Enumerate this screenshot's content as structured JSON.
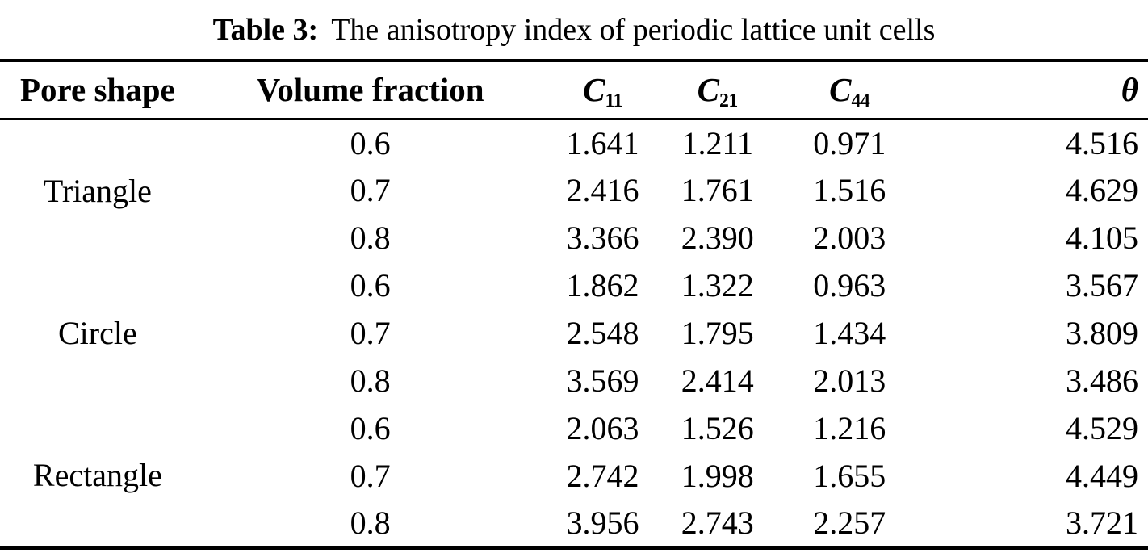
{
  "caption": {
    "label": "Table 3:",
    "text": "The anisotropy index of periodic lattice unit cells"
  },
  "columns": {
    "pore_shape": "Pore shape",
    "volume_fraction": "Volume fraction",
    "c11_base": "C",
    "c11_sub": "11",
    "c21_base": "C",
    "c21_sub": "21",
    "c44_base": "C",
    "c44_sub": "44",
    "theta": "θ"
  },
  "groups": [
    {
      "pore_shape": "Triangle",
      "rows": [
        {
          "vf": "0.6",
          "c11": "1.641",
          "c21": "1.211",
          "c44": "0.971",
          "theta": "4.516"
        },
        {
          "vf": "0.7",
          "c11": "2.416",
          "c21": "1.761",
          "c44": "1.516",
          "theta": "4.629"
        },
        {
          "vf": "0.8",
          "c11": "3.366",
          "c21": "2.390",
          "c44": "2.003",
          "theta": "4.105"
        }
      ]
    },
    {
      "pore_shape": "Circle",
      "rows": [
        {
          "vf": "0.6",
          "c11": "1.862",
          "c21": "1.322",
          "c44": "0.963",
          "theta": "3.567"
        },
        {
          "vf": "0.7",
          "c11": "2.548",
          "c21": "1.795",
          "c44": "1.434",
          "theta": "3.809"
        },
        {
          "vf": "0.8",
          "c11": "3.569",
          "c21": "2.414",
          "c44": "2.013",
          "theta": "3.486"
        }
      ]
    },
    {
      "pore_shape": "Rectangle",
      "rows": [
        {
          "vf": "0.6",
          "c11": "2.063",
          "c21": "1.526",
          "c44": "1.216",
          "theta": "4.529"
        },
        {
          "vf": "0.7",
          "c11": "2.742",
          "c21": "1.998",
          "c44": "1.655",
          "theta": "4.449"
        },
        {
          "vf": "0.8",
          "c11": "3.956",
          "c21": "2.743",
          "c44": "2.257",
          "theta": "3.721"
        }
      ]
    }
  ],
  "chart_data": {
    "type": "table",
    "title": "Table 3: The anisotropy index of periodic lattice unit cells",
    "columns": [
      "Pore shape",
      "Volume fraction",
      "C11",
      "C21",
      "C44",
      "θ"
    ],
    "rows": [
      [
        "Triangle",
        0.6,
        1.641,
        1.211,
        0.971,
        4.516
      ],
      [
        "Triangle",
        0.7,
        2.416,
        1.761,
        1.516,
        4.629
      ],
      [
        "Triangle",
        0.8,
        3.366,
        2.39,
        2.003,
        4.105
      ],
      [
        "Circle",
        0.6,
        1.862,
        1.322,
        0.963,
        3.567
      ],
      [
        "Circle",
        0.7,
        2.548,
        1.795,
        1.434,
        3.809
      ],
      [
        "Circle",
        0.8,
        3.569,
        2.414,
        2.013,
        3.486
      ],
      [
        "Rectangle",
        0.6,
        2.063,
        1.526,
        1.216,
        4.529
      ],
      [
        "Rectangle",
        0.7,
        2.742,
        1.998,
        1.655,
        4.449
      ],
      [
        "Rectangle",
        0.8,
        3.956,
        2.743,
        2.257,
        3.721
      ]
    ]
  }
}
